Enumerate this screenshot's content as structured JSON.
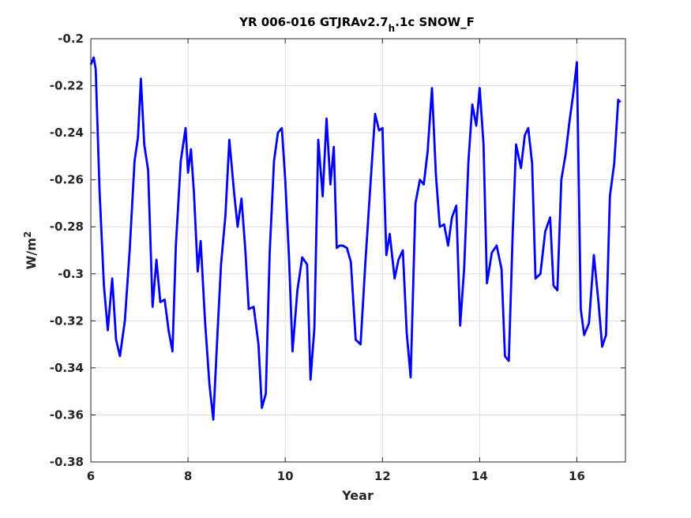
{
  "chart_data": {
    "type": "line",
    "title": "YR 006-016 GTJRAv2.7",
    "title_subscript": "h",
    "title_suffix": ".1c SNOW_F",
    "xlabel": "Year",
    "ylabel": "W/m",
    "ylabel_superscript": "2",
    "xlim": [
      6,
      17
    ],
    "ylim": [
      -0.38,
      -0.2
    ],
    "xticks": [
      6,
      8,
      10,
      12,
      14,
      16
    ],
    "yticks": [
      -0.38,
      -0.36,
      -0.34,
      -0.32,
      -0.3,
      -0.28,
      -0.26,
      -0.24,
      -0.22,
      -0.2
    ],
    "xtick_labels": [
      "6",
      "8",
      "10",
      "12",
      "14",
      "16"
    ],
    "ytick_labels": [
      "-0.38",
      "-0.36",
      "-0.34",
      "-0.32",
      "-0.3",
      "-0.28",
      "-0.26",
      "-0.24",
      "-0.22",
      "-0.2"
    ],
    "grid": true,
    "line_color": "#0000ff",
    "series": [
      {
        "x": [
          6.0,
          6.06,
          6.1,
          6.18,
          6.27,
          6.35,
          6.44,
          6.52,
          6.6,
          6.7,
          6.8,
          6.9,
          6.97,
          7.03,
          7.1,
          7.18,
          7.27,
          7.35,
          7.43,
          7.52,
          7.6,
          7.68,
          7.75,
          7.85,
          7.95,
          8.0,
          8.06,
          8.12,
          8.2,
          8.26,
          8.35,
          8.44,
          8.52,
          8.6,
          8.68,
          8.77,
          8.85,
          8.95,
          9.02,
          9.1,
          9.18,
          9.25,
          9.35,
          9.45,
          9.52,
          9.6,
          9.68,
          9.77,
          9.85,
          9.93,
          10.0,
          10.08,
          10.15,
          10.25,
          10.35,
          10.45,
          10.52,
          10.6,
          10.68,
          10.77,
          10.85,
          10.93,
          11.0,
          11.06,
          11.12,
          11.18,
          11.27,
          11.35,
          11.45,
          11.55,
          11.65,
          11.75,
          11.85,
          11.93,
          12.0,
          12.08,
          12.15,
          12.25,
          12.33,
          12.42,
          12.5,
          12.58,
          12.68,
          12.77,
          12.85,
          12.93,
          13.02,
          13.1,
          13.18,
          13.27,
          13.35,
          13.43,
          13.52,
          13.6,
          13.68,
          13.77,
          13.85,
          13.93,
          14.0,
          14.08,
          14.15,
          14.25,
          14.35,
          14.45,
          14.52,
          14.6,
          14.68,
          14.75,
          14.85,
          14.93,
          15.0,
          15.08,
          15.15,
          15.25,
          15.35,
          15.45,
          15.52,
          15.6,
          15.68,
          15.77,
          15.85,
          15.93,
          16.0,
          16.08,
          16.15,
          16.25,
          16.35,
          16.45,
          16.52,
          16.6,
          16.68,
          16.77,
          16.85,
          16.9
        ],
        "y": [
          -0.211,
          -0.208,
          -0.213,
          -0.265,
          -0.305,
          -0.324,
          -0.302,
          -0.328,
          -0.335,
          -0.32,
          -0.29,
          -0.252,
          -0.242,
          -0.217,
          -0.245,
          -0.256,
          -0.314,
          -0.294,
          -0.312,
          -0.311,
          -0.324,
          -0.333,
          -0.288,
          -0.252,
          -0.238,
          -0.257,
          -0.247,
          -0.265,
          -0.299,
          -0.286,
          -0.32,
          -0.347,
          -0.362,
          -0.328,
          -0.296,
          -0.275,
          -0.243,
          -0.266,
          -0.28,
          -0.268,
          -0.29,
          -0.315,
          -0.314,
          -0.33,
          -0.357,
          -0.351,
          -0.291,
          -0.252,
          -0.24,
          -0.238,
          -0.26,
          -0.294,
          -0.333,
          -0.307,
          -0.293,
          -0.296,
          -0.345,
          -0.323,
          -0.243,
          -0.267,
          -0.234,
          -0.262,
          -0.246,
          -0.289,
          -0.288,
          -0.288,
          -0.289,
          -0.295,
          -0.328,
          -0.33,
          -0.295,
          -0.263,
          -0.232,
          -0.239,
          -0.238,
          -0.292,
          -0.283,
          -0.302,
          -0.294,
          -0.29,
          -0.325,
          -0.344,
          -0.27,
          -0.26,
          -0.262,
          -0.248,
          -0.221,
          -0.258,
          -0.28,
          -0.279,
          -0.288,
          -0.276,
          -0.271,
          -0.322,
          -0.298,
          -0.252,
          -0.228,
          -0.237,
          -0.221,
          -0.245,
          -0.304,
          -0.291,
          -0.288,
          -0.298,
          -0.335,
          -0.337,
          -0.283,
          -0.245,
          -0.255,
          -0.241,
          -0.238,
          -0.253,
          -0.302,
          -0.3,
          -0.282,
          -0.276,
          -0.305,
          -0.307,
          -0.26,
          -0.249,
          -0.235,
          -0.223,
          -0.21,
          -0.315,
          -0.326,
          -0.321,
          -0.292,
          -0.313,
          -0.331,
          -0.326,
          -0.267,
          -0.253,
          -0.226,
          -0.227
        ]
      }
    ]
  }
}
